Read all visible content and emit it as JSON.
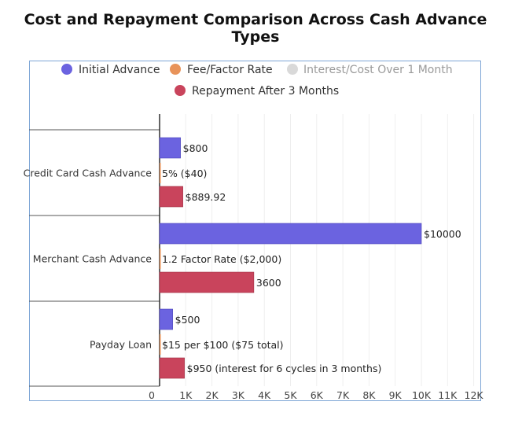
{
  "chart_data": {
    "type": "bar",
    "orientation": "horizontal",
    "title": "Cost and Repayment Comparison Across Cash Advance Types",
    "categories": [
      "Credit Card Cash Advance",
      "Merchant Cash Advance",
      "Payday Loan"
    ],
    "series": [
      {
        "name": "Initial Advance",
        "color": "#6b63e0",
        "values": [
          800,
          10000,
          500
        ],
        "labels": [
          "$800",
          "$10000",
          "$500"
        ]
      },
      {
        "name": "Fee/Factor Rate",
        "color": "#e8935a",
        "values": [
          0,
          0,
          0
        ],
        "labels": [
          "5% ($40)",
          "1.2 Factor Rate ($2,000)",
          "$15 per $100 ($75 total)"
        ]
      },
      {
        "name": "Interest/Cost Over 1 Month",
        "color": "#d9d9d9",
        "values": [
          0,
          0,
          0
        ],
        "labels": [
          "",
          "",
          ""
        ]
      },
      {
        "name": "Repayment After 3 Months",
        "color": "#c9445c",
        "values": [
          889.92,
          3600,
          950
        ],
        "labels": [
          "$889.92",
          "3600",
          "$950 (interest for 6 cycles in 3 months)"
        ]
      }
    ],
    "xlim": [
      0,
      12000
    ],
    "xticks": [
      0,
      1000,
      2000,
      3000,
      4000,
      5000,
      6000,
      7000,
      8000,
      9000,
      10000,
      11000,
      12000
    ],
    "xtick_labels": [
      "0",
      "1K",
      "2K",
      "3K",
      "4K",
      "5K",
      "6K",
      "7K",
      "8K",
      "9K",
      "10K",
      "11K",
      "12K"
    ],
    "grid": true,
    "legend_position": "top"
  }
}
